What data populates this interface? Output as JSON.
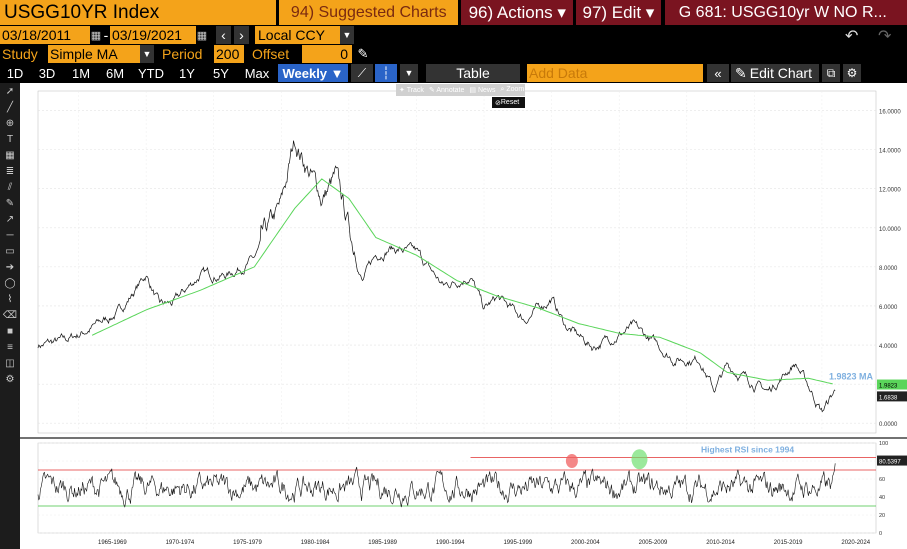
{
  "header": {
    "ticker": "USGG10YR Index",
    "suggested_label": "94) Suggested Charts",
    "actions_label": "96) Actions ▾",
    "edit_label": "97) Edit ▾",
    "title_label": "G 681: USGG10yr W NO R..."
  },
  "dates": {
    "start": "03/18/2011",
    "end": "03/19/2021",
    "currency": "Local CCY"
  },
  "study": {
    "label": "Study",
    "value": "Simple MA",
    "period_label": "Period",
    "period_value": "200",
    "offset_label": "Offset",
    "offset_value": "0"
  },
  "toolbar": {
    "ranges": [
      "1D",
      "3D",
      "1M",
      "6M",
      "YTD",
      "1Y",
      "5Y",
      "Max"
    ],
    "interval": "Weekly ▼",
    "table_label": "Table",
    "add_data_placeholder": "Add Data",
    "edit_chart_label": "Edit Chart"
  },
  "popup": {
    "track": "Track",
    "annotate": "Annotate",
    "news": "News",
    "zoom": "Zoom",
    "reset": "Reset"
  },
  "chart_data": {
    "type": "line",
    "main_panel": {
      "y_ticks": [
        "16.0000",
        "14.0000",
        "12.0000",
        "10.0000",
        "8.0000",
        "6.0000",
        "4.0000",
        "2.0000",
        "0.0000"
      ],
      "ylim": [
        -0.5,
        17
      ],
      "last_value_label": "1.6838",
      "ma_value_label": "1.9823",
      "ma_annotation": "1.9823 MA",
      "series": [
        {
          "values_desc": "USGG10YR weekly yield",
          "x": [
            1962,
            1964,
            1966,
            1968,
            1970,
            1971,
            1972,
            1974,
            1976,
            1978,
            1980,
            1981,
            1982,
            1983,
            1984,
            1985,
            1986,
            1987,
            1988,
            1990,
            1992,
            1994,
            1995,
            1996,
            1998,
            2000,
            2001,
            2003,
            2006,
            2008,
            2009,
            2011,
            2012,
            2013,
            2014,
            2016,
            2018,
            2019,
            2020,
            2021
          ],
          "y": [
            4.0,
            4.2,
            4.9,
            5.7,
            7.6,
            6.0,
            6.1,
            7.6,
            7.6,
            8.4,
            11.0,
            14.5,
            13.0,
            11.5,
            12.5,
            10.0,
            7.3,
            8.6,
            9.0,
            8.7,
            7.0,
            7.6,
            5.8,
            6.4,
            5.3,
            6.4,
            5.0,
            3.9,
            4.9,
            3.9,
            3.3,
            3.3,
            1.7,
            2.9,
            2.5,
            1.6,
            3.1,
            1.9,
            0.6,
            1.68
          ]
        },
        {
          "values_desc": "200 week simple moving average",
          "x": [
            1966,
            1970,
            1974,
            1978,
            1981,
            1983,
            1985,
            1987,
            1990,
            1993,
            1996,
            1999,
            2002,
            2005,
            2008,
            2011,
            2013,
            2016,
            2019,
            2021
          ],
          "y": [
            4.5,
            5.8,
            6.8,
            8.0,
            11.0,
            12.5,
            11.5,
            9.5,
            8.6,
            7.3,
            6.5,
            5.9,
            5.1,
            4.6,
            4.4,
            3.6,
            2.6,
            2.2,
            2.3,
            1.98
          ]
        }
      ]
    },
    "rsi_panel": {
      "y_ticks": [
        "100",
        "80",
        "60",
        "40",
        "20",
        "0"
      ],
      "ylim": [
        0,
        100
      ],
      "last_value_label": "80.5397",
      "upper_line": 70,
      "lower_line": 30,
      "annotation": "Highest RSI since 1994"
    },
    "x_ticks": [
      "1965-1969",
      "1970-1974",
      "1975-1979",
      "1980-1984",
      "1985-1989",
      "1990-1994",
      "1995-1999",
      "2000-2004",
      "2005-2009",
      "2010-2014",
      "2015-2019",
      "2020-2024"
    ],
    "xlim": [
      1962,
      2024
    ]
  }
}
